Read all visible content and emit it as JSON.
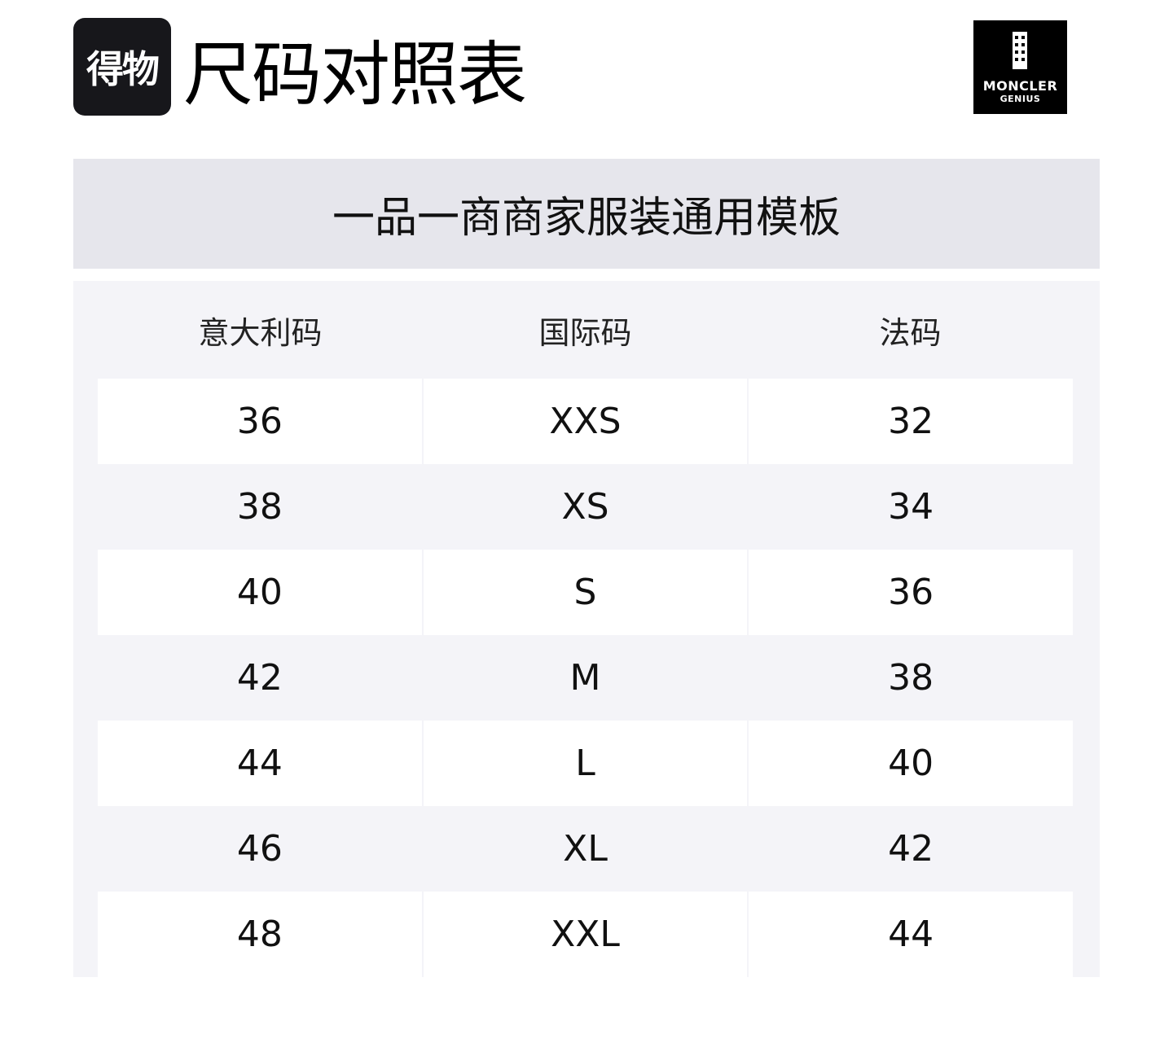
{
  "header": {
    "brand_logo_text": "得物",
    "title": "尺码对照表",
    "partner_logo": {
      "line1": "MONCLER",
      "line2": "GENIUS"
    }
  },
  "subtitle": "一品一商商家服装通用模板",
  "table": {
    "columns": [
      "意大利码",
      "国际码",
      "法码"
    ],
    "rows": [
      [
        "36",
        "XXS",
        "32"
      ],
      [
        "38",
        "XS",
        "34"
      ],
      [
        "40",
        "S",
        "36"
      ],
      [
        "42",
        "M",
        "38"
      ],
      [
        "44",
        "L",
        "40"
      ],
      [
        "46",
        "XL",
        "42"
      ],
      [
        "48",
        "XXL",
        "44"
      ]
    ]
  }
}
